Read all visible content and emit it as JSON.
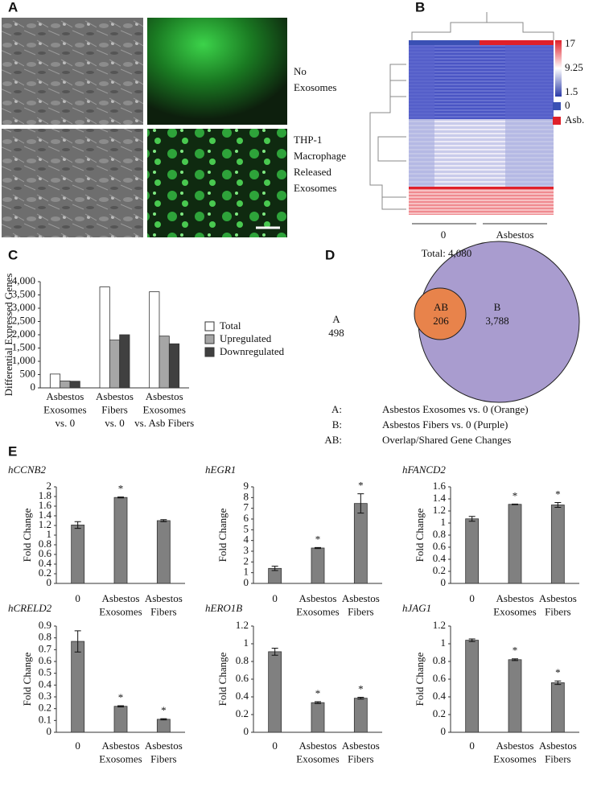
{
  "panel_labels": [
    "A",
    "B",
    "C",
    "D",
    "E"
  ],
  "panel_a": {
    "rows": [
      [
        "No",
        "Exosomes"
      ],
      [
        "THP-1",
        "Macrophage",
        "Released",
        "Exosomes"
      ]
    ]
  },
  "panel_b": {
    "colorbar_ticks": [
      17,
      9.25,
      1.5
    ],
    "legend": [
      "0",
      "Asb."
    ],
    "groups": [
      "0",
      "Asbestos"
    ]
  },
  "panel_d": {
    "total": "Total: 4,080",
    "a_label": "A",
    "a_value": "498",
    "ab_label": "AB",
    "ab_value": "206",
    "b_label": "B",
    "b_value": "3,788",
    "key": [
      [
        "A:",
        "Asbestos Exosomes vs. 0 (Orange)"
      ],
      [
        "B:",
        "Asbestos Fibers vs. 0 (Purple)"
      ],
      [
        "AB:",
        "Overlap/Shared Gene Changes"
      ]
    ]
  },
  "chart_data": [
    {
      "type": "bar",
      "ylabel": "Differential Expressed Genes",
      "categories": [
        [
          "Asbestos",
          "Exosomes",
          "vs. 0"
        ],
        [
          "Asbestos",
          "Fibers",
          "vs. 0"
        ],
        [
          "Asbestos",
          "Exosomes",
          "vs. Asb Fibers"
        ]
      ],
      "series": [
        {
          "name": "Total",
          "color": "#ffffff",
          "values": [
            520,
            3800,
            3620
          ]
        },
        {
          "name": "Upregulated",
          "color": "#a6a6a6",
          "values": [
            260,
            1800,
            1950
          ]
        },
        {
          "name": "Downregulated",
          "color": "#404040",
          "values": [
            250,
            2000,
            1660
          ]
        }
      ],
      "ylim": [
        0,
        4000
      ],
      "yticks": [
        0,
        500,
        {
          "value": 1000,
          "label": "1,000"
        },
        {
          "value": 1500,
          "label": "1,500"
        },
        {
          "value": 2000,
          "label": "2,000"
        },
        {
          "value": 2500,
          "label": "2,500"
        },
        {
          "value": 3000,
          "label": "3,000"
        },
        {
          "value": 3500,
          "label": "3,500"
        },
        {
          "value": 4000,
          "label": "4,000"
        }
      ],
      "legend": "right"
    },
    {
      "type": "bar",
      "title": "hCCNB2",
      "ylabel": "Fold Change",
      "categories": [
        [
          "0"
        ],
        [
          "Asbestos",
          "Exosomes"
        ],
        [
          "Asbestos",
          "Fibers"
        ]
      ],
      "values": [
        1.21,
        1.78,
        1.3
      ],
      "errors": [
        0.07,
        0.01,
        0.02
      ],
      "color": "#808080",
      "significant": [
        false,
        true,
        false
      ],
      "marker": "*",
      "ylim": [
        0,
        2
      ],
      "yticks": [
        0,
        0.2,
        0.4,
        0.6,
        0.8,
        1,
        1.2,
        1.4,
        1.6,
        1.8,
        2
      ]
    },
    {
      "type": "bar",
      "title": "hEGR1",
      "ylabel": "Fold Change",
      "categories": [
        [
          "0"
        ],
        [
          "Asbestos",
          "Exosomes"
        ],
        [
          "Asbestos",
          "Fibers"
        ]
      ],
      "values": [
        1.4,
        3.3,
        7.45
      ],
      "errors": [
        0.2,
        0.05,
        0.9
      ],
      "color": "#808080",
      "significant": [
        false,
        true,
        true
      ],
      "marker": "*",
      "ylim": [
        0,
        9
      ],
      "yticks": [
        0,
        1,
        2,
        3,
        4,
        5,
        6,
        7,
        8,
        9
      ]
    },
    {
      "type": "bar",
      "title": "hFANCD2",
      "ylabel": "Fold Change",
      "categories": [
        [
          "0"
        ],
        [
          "Asbestos",
          "Exosomes"
        ],
        [
          "Asbestos",
          "Fibers"
        ]
      ],
      "values": [
        1.07,
        1.31,
        1.3
      ],
      "errors": [
        0.04,
        0.005,
        0.04
      ],
      "color": "#808080",
      "significant": [
        false,
        true,
        true
      ],
      "marker": "*",
      "ylim": [
        0,
        1.6
      ],
      "yticks": [
        0,
        0.2,
        0.4,
        0.6,
        0.8,
        1,
        1.2,
        1.4,
        1.6
      ]
    },
    {
      "type": "bar",
      "title": "hCRELD2",
      "ylabel": "Fold Change",
      "categories": [
        [
          "0"
        ],
        [
          "Asbestos",
          "Exosomes"
        ],
        [
          "Asbestos",
          "Fibers"
        ]
      ],
      "values": [
        0.77,
        0.22,
        0.11
      ],
      "errors": [
        0.09,
        0.005,
        0.005
      ],
      "color": "#808080",
      "significant": [
        false,
        true,
        true
      ],
      "marker": "*",
      "ylim": [
        0,
        0.9
      ],
      "yticks": [
        0,
        0.1,
        0.2,
        0.3,
        0.4,
        0.5,
        0.6,
        0.7,
        0.8,
        0.9
      ]
    },
    {
      "type": "bar",
      "title": "hERO1B",
      "ylabel": "Fold Change",
      "categories": [
        [
          "0"
        ],
        [
          "Asbestos",
          "Exosomes"
        ],
        [
          "Asbestos",
          "Fibers"
        ]
      ],
      "values": [
        0.91,
        0.335,
        0.385
      ],
      "errors": [
        0.04,
        0.01,
        0.01
      ],
      "color": "#808080",
      "significant": [
        false,
        true,
        true
      ],
      "marker": "*",
      "ylim": [
        0,
        1.2
      ],
      "yticks": [
        0,
        0.2,
        0.4,
        0.6,
        0.8,
        1,
        1.2
      ]
    },
    {
      "type": "bar",
      "title": "hJAG1",
      "ylabel": "Fold Change",
      "categories": [
        [
          "0"
        ],
        [
          "Asbestos",
          "Exosomes"
        ],
        [
          "Asbestos",
          "Fibers"
        ]
      ],
      "values": [
        1.04,
        0.82,
        0.56
      ],
      "errors": [
        0.015,
        0.01,
        0.02
      ],
      "color": "#808080",
      "significant": [
        false,
        true,
        true
      ],
      "marker": "*",
      "ylim": [
        0,
        1.2
      ],
      "yticks": [
        0,
        0.2,
        0.4,
        0.6,
        0.8,
        1,
        1.2
      ]
    }
  ]
}
